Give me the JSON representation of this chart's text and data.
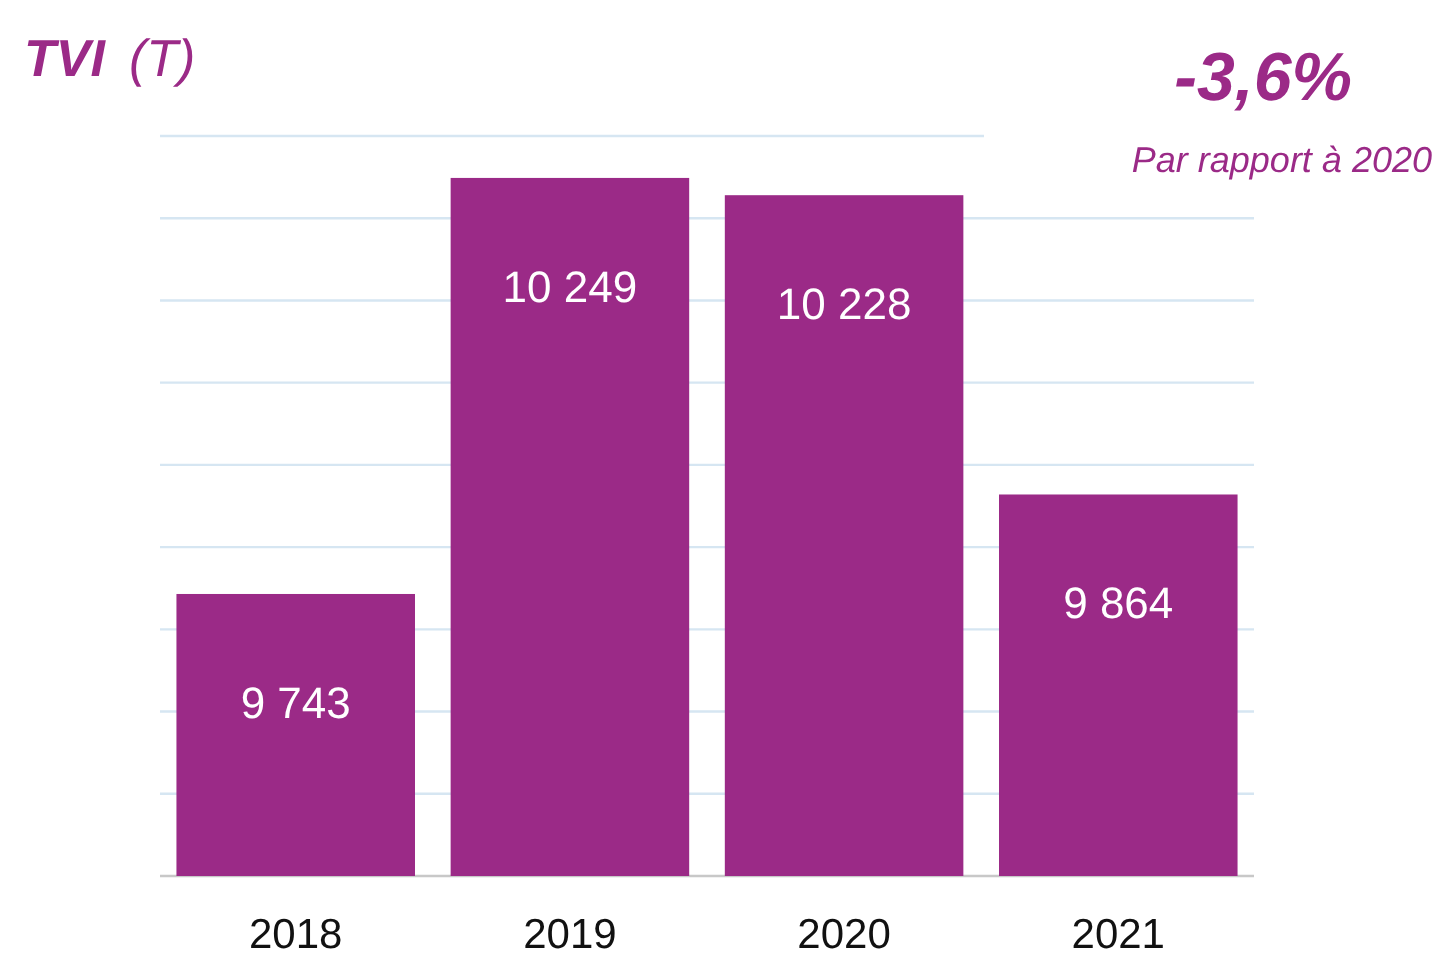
{
  "chart_data": {
    "type": "bar",
    "title": "TVI",
    "ylabel": "(T)",
    "categories": [
      "2018",
      "2019",
      "2020",
      "2021"
    ],
    "values": [
      9743,
      10249,
      10228,
      9864
    ],
    "value_labels": [
      "9 743",
      "10 249",
      "10 228",
      "9 864"
    ],
    "color": "#9b2a87",
    "ylim": [
      9400,
      10300
    ],
    "yticks": [
      {
        "value": 9400,
        "label": null
      },
      {
        "value": 9500,
        "label": null
      },
      {
        "value": 9600,
        "label": null
      },
      {
        "value": 9700,
        "label": null
      },
      {
        "value": 9800,
        "label": null
      },
      {
        "value": 9900,
        "label": null
      },
      {
        "value": 10000,
        "label": null
      },
      {
        "value": 10100,
        "label": null
      },
      {
        "value": 10200,
        "label": null
      },
      {
        "value": 10300,
        "label": null
      }
    ],
    "tick_labels": "x",
    "grid": "y",
    "annotations": [
      "-3,6%",
      "Par rapport à 2020"
    ]
  }
}
